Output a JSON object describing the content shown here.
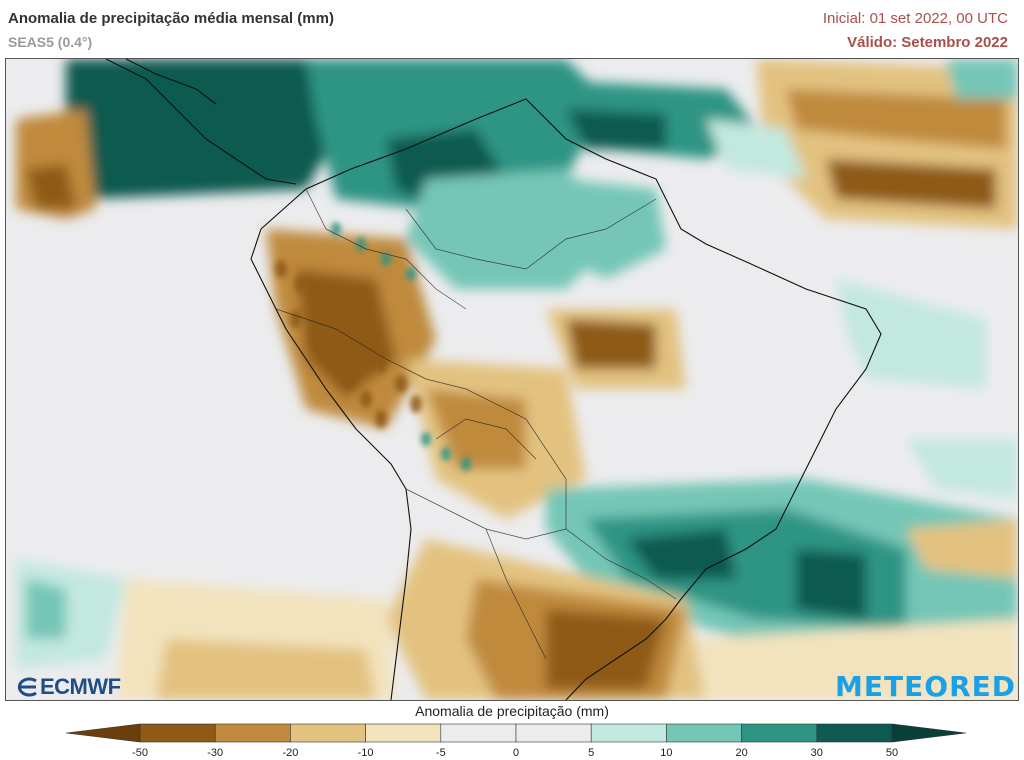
{
  "header": {
    "title": "Anomalia de precipitação média mensal (mm)",
    "model": "SEAS5 (0.4°)",
    "initial": "Inicial: 01 set 2022, 00 UTC",
    "valid": "Válido: Setembro 2022"
  },
  "legend": {
    "title": "Anomalia de precipitação (mm)",
    "ticks": [
      "-50",
      "-30",
      "-20",
      "-10",
      "-5",
      "0",
      "5",
      "10",
      "20",
      "30",
      "50"
    ],
    "colors": [
      "#6b3f0c",
      "#8e5a16",
      "#c08a3e",
      "#e3c280",
      "#f3e3bd",
      "#ececee",
      "#ececee",
      "#c3e8e0",
      "#74c6b6",
      "#2e9484",
      "#0e5a50",
      "#083f38"
    ]
  },
  "logos": {
    "left": "ECMWF",
    "right": "METEORED"
  }
}
